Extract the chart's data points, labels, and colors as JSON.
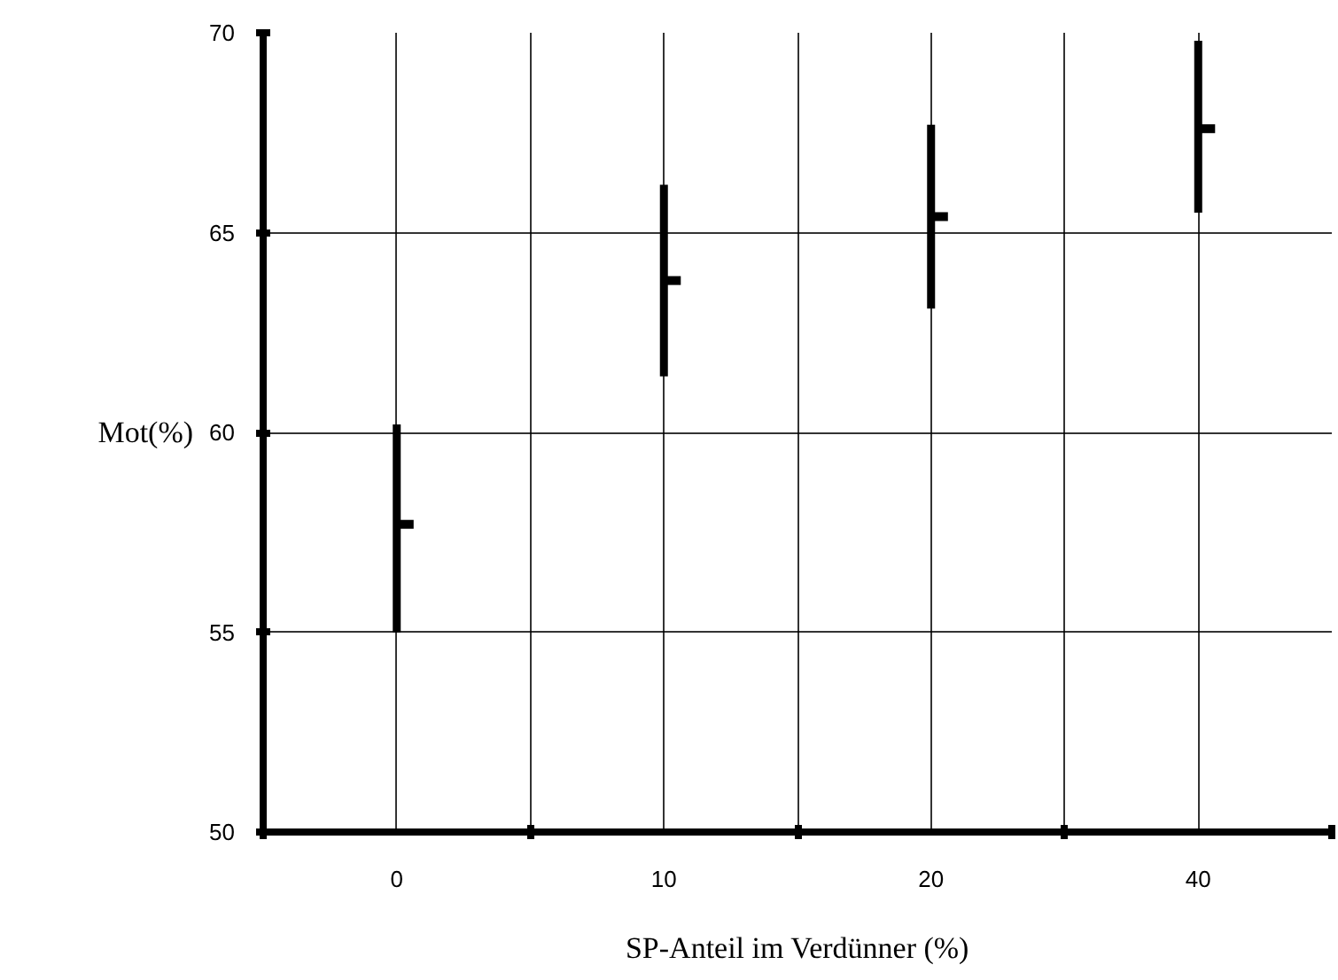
{
  "chart_data": {
    "type": "scatter",
    "xlabel": "SP-Anteil im Verdünner (%)",
    "ylabel": "Mot(%)",
    "categories": [
      "0",
      "10",
      "20",
      "40"
    ],
    "values": [
      57.7,
      63.8,
      65.4,
      67.6
    ],
    "errors": [
      [
        55.0,
        60.2
      ],
      [
        61.4,
        66.2
      ],
      [
        63.1,
        67.7
      ],
      [
        65.5,
        69.8
      ]
    ],
    "color": "#000000",
    "ylim": [
      50,
      70
    ],
    "yticks": [
      50,
      55,
      60,
      65,
      70
    ],
    "grid": true
  }
}
